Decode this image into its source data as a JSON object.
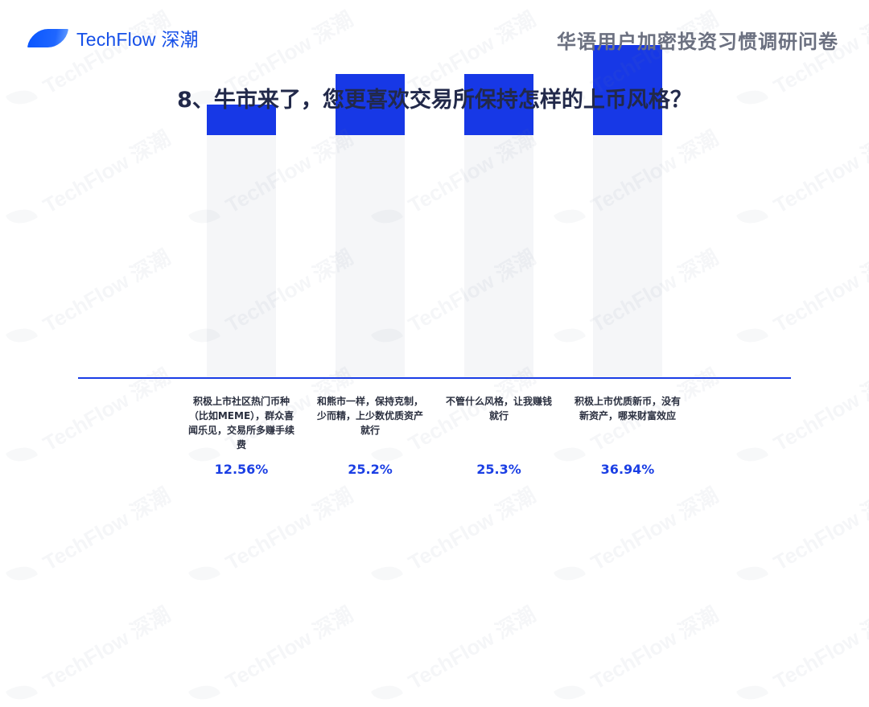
{
  "header": {
    "brand": "TechFlow 深潮",
    "report_title": "华语用户加密投资习惯调研问卷"
  },
  "question": {
    "title": "8、牛市来了，您更喜欢交易所保持怎样的上币风格？"
  },
  "watermark": {
    "text": "TechFlow 深潮"
  },
  "colors": {
    "bar_fill": "#1738e6",
    "bar_background": "#f5f6f8",
    "baseline": "#1a3de6",
    "percent_text": "#1b3fe4",
    "title_text": "#22294a",
    "brand": "#1650e8"
  },
  "chart_data": {
    "type": "bar",
    "title": "8、牛市来了，您更喜欢交易所保持怎样的上币风格？",
    "xlabel": "",
    "ylabel": "",
    "ylim": [
      0,
      100
    ],
    "grid": false,
    "legend": null,
    "categories": [
      "积极上市社区热门币种（比如MEME），群众喜闻乐见，交易所多赚手续费",
      "和熊市一样，保持克制，少而精，上少数优质资产就行",
      "不管什么风格，让我赚钱就行",
      "积极上市优质新币，没有新资产，哪来财富效应"
    ],
    "values": [
      12.56,
      25.2,
      25.3,
      36.94
    ],
    "value_labels": [
      "12.56%",
      "25.2%",
      "25.3%",
      "36.94%"
    ]
  },
  "bars": [
    {
      "label": "积极上市社区热门币种（比如MEME），群众喜闻乐见，交易所多赚手续费",
      "pct": "12.56%",
      "value": 12.56
    },
    {
      "label": "和熊市一样，保持克制，少而精，上少数优质资产就行",
      "pct": "25.2%",
      "value": 25.2
    },
    {
      "label": "不管什么风格，让我赚钱就行",
      "pct": "25.3%",
      "value": 25.3
    },
    {
      "label": "积极上市优质新币，没有新资产，哪来财富效应",
      "pct": "36.94%",
      "value": 36.94
    }
  ]
}
